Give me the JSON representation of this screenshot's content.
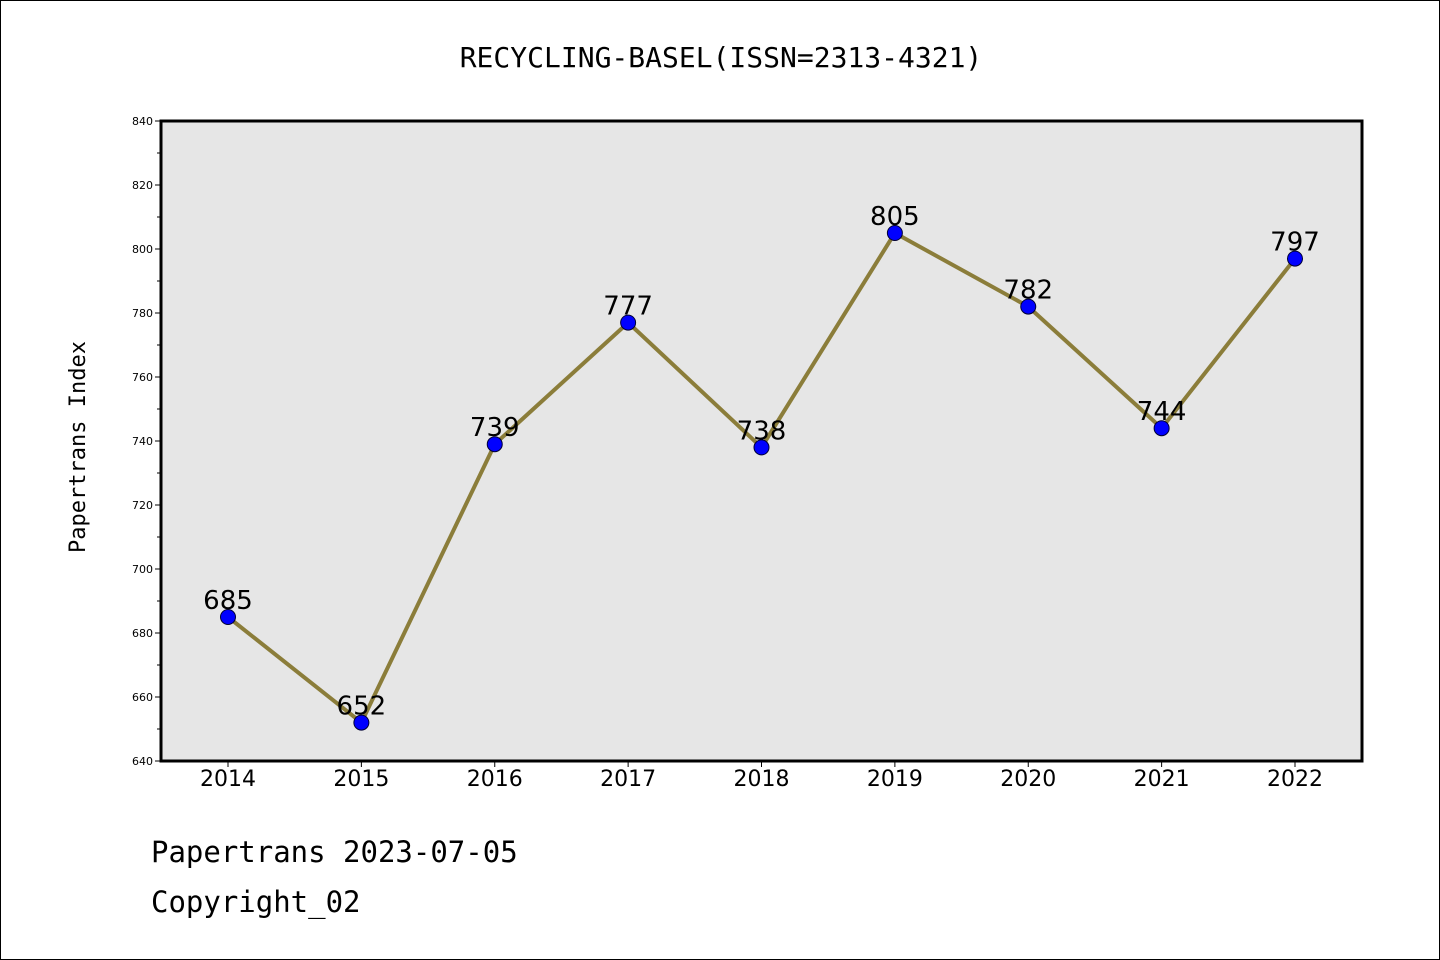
{
  "footer": {
    "line1": "Papertrans 2023-07-05",
    "line2": "Copyright_02"
  },
  "chart_data": {
    "type": "line",
    "title": "RECYCLING-BASEL(ISSN=2313-4321)",
    "xlabel": "",
    "ylabel": "Papertrans Index",
    "categories": [
      "2014",
      "2015",
      "2016",
      "2017",
      "2018",
      "2019",
      "2020",
      "2021",
      "2022"
    ],
    "values": [
      685,
      652,
      739,
      777,
      738,
      805,
      782,
      744,
      797
    ],
    "data_labels": [
      "685",
      "652",
      "739",
      "777",
      "738",
      "805",
      "782",
      "744",
      "797"
    ],
    "ylim": [
      640,
      840
    ],
    "yticks": [
      640,
      660,
      680,
      700,
      720,
      740,
      760,
      780,
      800,
      820,
      840
    ],
    "grid": false,
    "colors": {
      "line": "#8b7d3a",
      "marker": "#0000ff",
      "plot_background": "#e6e6e6"
    }
  }
}
